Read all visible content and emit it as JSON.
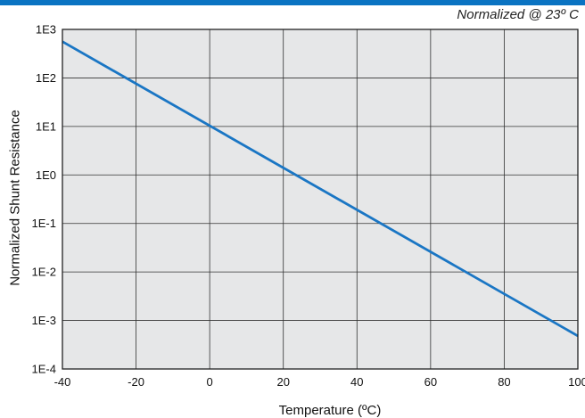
{
  "chart_data": {
    "type": "line",
    "annotation": "Normalized @ 23º C",
    "xlabel": "Temperature (ºC)",
    "ylabel": "Normalized Shunt Resistance",
    "xlim": [
      -40,
      100
    ],
    "ylim": [
      0.0001,
      1000
    ],
    "yscale": "log",
    "grid": true,
    "x_ticks": [
      "-40",
      "-20",
      "0",
      "20",
      "40",
      "60",
      "80",
      "100"
    ],
    "y_ticks": [
      "1E3",
      "1E2",
      "1E1",
      "1E0",
      "1E-1",
      "1E-2",
      "1E-3",
      "1E-4"
    ],
    "series": [
      {
        "color": "#1a76c4",
        "x": [
          -40,
          100
        ],
        "y": [
          560,
          0.00048
        ]
      }
    ]
  }
}
